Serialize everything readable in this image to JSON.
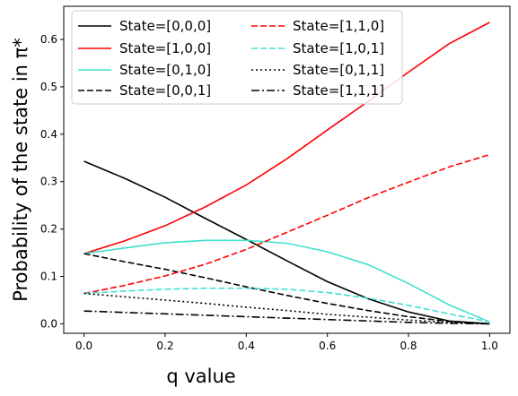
{
  "chart_data": {
    "type": "line",
    "xlabel": "q value",
    "ylabel": "Probability of the state in π*",
    "xlim": [
      -0.05,
      1.05
    ],
    "ylim": [
      -0.02,
      0.67
    ],
    "x": [
      0.0,
      0.1,
      0.2,
      0.3,
      0.4,
      0.5,
      0.6,
      0.7,
      0.8,
      0.9,
      1.0
    ],
    "xticks": [
      "0.0",
      "0.2",
      "0.4",
      "0.6",
      "0.8",
      "1.0"
    ],
    "yticks": [
      "0.0",
      "0.1",
      "0.2",
      "0.3",
      "0.4",
      "0.5",
      "0.6"
    ],
    "legend_position": "upper-left, two columns",
    "grid": false,
    "series": [
      {
        "name": "State=[0,0,0]",
        "color": "#000000",
        "dash": "solid",
        "values": [
          0.343,
          0.307,
          0.267,
          0.222,
          0.178,
          0.133,
          0.089,
          0.053,
          0.025,
          0.006,
          0.0
        ]
      },
      {
        "name": "State=[1,0,0]",
        "color": "#ff0000",
        "dash": "solid",
        "values": [
          0.148,
          0.175,
          0.207,
          0.247,
          0.293,
          0.348,
          0.409,
          0.469,
          0.531,
          0.591,
          0.636
        ]
      },
      {
        "name": "State=[0,1,0]",
        "color": "#40e0d0",
        "dash": "solid",
        "values": [
          0.148,
          0.16,
          0.171,
          0.176,
          0.176,
          0.17,
          0.152,
          0.125,
          0.085,
          0.04,
          0.004
        ]
      },
      {
        "name": "State=[0,0,1]",
        "color": "#000000",
        "dash": "dashed",
        "values": [
          0.148,
          0.131,
          0.115,
          0.097,
          0.078,
          0.06,
          0.043,
          0.028,
          0.015,
          0.005,
          0.0
        ]
      },
      {
        "name": "State=[1,1,0]",
        "color": "#ff0000",
        "dash": "dashed",
        "values": [
          0.064,
          0.081,
          0.101,
          0.126,
          0.157,
          0.193,
          0.229,
          0.266,
          0.299,
          0.331,
          0.357
        ]
      },
      {
        "name": "State=[1,0,1]",
        "color": "#40e0d0",
        "dash": "dashed",
        "values": [
          0.064,
          0.069,
          0.073,
          0.075,
          0.075,
          0.073,
          0.066,
          0.054,
          0.039,
          0.021,
          0.004
        ]
      },
      {
        "name": "State=[0,1,1]",
        "color": "#000000",
        "dash": "dotted",
        "values": [
          0.064,
          0.057,
          0.05,
          0.043,
          0.035,
          0.028,
          0.02,
          0.014,
          0.008,
          0.003,
          0.0
        ]
      },
      {
        "name": "State=[1,1,1]",
        "color": "#000000",
        "dash": "dashdot",
        "values": [
          0.027,
          0.024,
          0.021,
          0.018,
          0.015,
          0.012,
          0.009,
          0.006,
          0.003,
          0.001,
          0.0
        ]
      }
    ]
  }
}
